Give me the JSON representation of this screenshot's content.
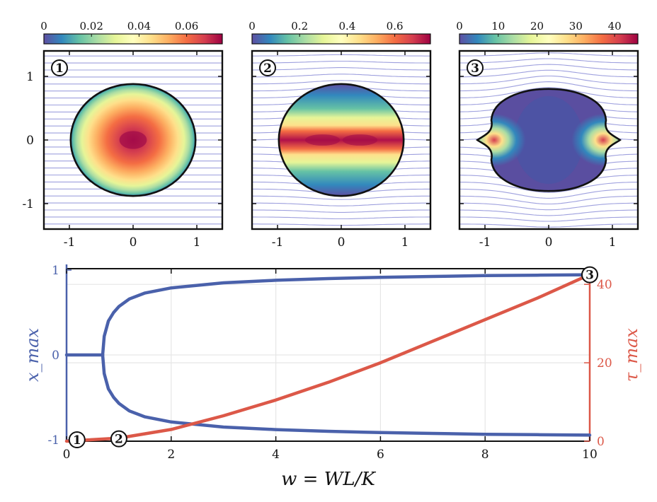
{
  "chart_data": [
    {
      "type": "heatmap",
      "panel_label": "1",
      "colorbar": {
        "min": 0,
        "max": 0.075,
        "ticks": [
          0,
          0.02,
          0.04,
          0.06
        ]
      },
      "xticks": [
        -1,
        0,
        1
      ],
      "yticks": [
        1,
        0,
        -1
      ],
      "xlim": [
        -1.4,
        1.4
      ],
      "ylim": [
        -1.4,
        1.4
      ],
      "shape": {
        "type": "ellipse",
        "rx": 0.98,
        "ry": 0.88,
        "spikes": 0
      },
      "field": "central-peak",
      "streamline_bend": 0.0
    },
    {
      "type": "heatmap",
      "panel_label": "2",
      "colorbar": {
        "min": 0,
        "max": 0.75,
        "ticks": [
          0,
          0.2,
          0.4,
          0.6
        ]
      },
      "xticks": [
        -1,
        0,
        1
      ],
      "yticks": [],
      "xlim": [
        -1.4,
        1.4
      ],
      "ylim": [
        -1.4,
        1.4
      ],
      "shape": {
        "type": "ellipse",
        "rx": 0.98,
        "ry": 0.88,
        "spikes": 0
      },
      "field": "horizontal-band",
      "streamline_bend": 0.12
    },
    {
      "type": "heatmap",
      "panel_label": "3",
      "colorbar": {
        "min": 0,
        "max": 46,
        "ticks": [
          0,
          10,
          20,
          30,
          40
        ]
      },
      "xticks": [
        -1,
        0,
        1
      ],
      "yticks": [],
      "xlim": [
        -1.4,
        1.4
      ],
      "ylim": [
        -1.4,
        1.4
      ],
      "shape": {
        "type": "cusped-circle",
        "rx": 0.9,
        "ry": 0.92,
        "cusp_x": 1.12
      },
      "field": "edge-peaks",
      "streamline_bend": 0.28
    },
    {
      "type": "line",
      "xlabel": "w = WL/K",
      "ylabel_left": "x_max",
      "ylabel_right": "τ_max",
      "xlim": [
        0,
        10
      ],
      "ylim_left": [
        -1,
        1
      ],
      "ylim_right": [
        0,
        44
      ],
      "xticks": [
        0,
        2,
        4,
        6,
        8,
        10
      ],
      "yticks_left": [
        -1,
        0,
        1
      ],
      "yticks_right": [
        0,
        20,
        40
      ],
      "colors": {
        "left": "#4a61ab",
        "right": "#dc5848"
      },
      "bifurcation_w": 0.69,
      "series": [
        {
          "name": "x_max (zero branch)",
          "axis": "left",
          "x": [
            0,
            0.69
          ],
          "y": [
            0,
            0
          ]
        },
        {
          "name": "x_max (upper branch)",
          "axis": "left",
          "x": [
            0.69,
            0.72,
            0.8,
            0.9,
            1.0,
            1.2,
            1.5,
            2,
            3,
            4,
            5,
            6,
            7,
            8,
            9,
            10
          ],
          "y": [
            0,
            0.22,
            0.4,
            0.5,
            0.57,
            0.66,
            0.73,
            0.79,
            0.85,
            0.88,
            0.9,
            0.915,
            0.925,
            0.935,
            0.94,
            0.945
          ]
        },
        {
          "name": "x_max (lower branch)",
          "axis": "left",
          "x": [
            0.69,
            0.72,
            0.8,
            0.9,
            1.0,
            1.2,
            1.5,
            2,
            3,
            4,
            5,
            6,
            7,
            8,
            9,
            10
          ],
          "y": [
            0,
            -0.22,
            -0.4,
            -0.5,
            -0.57,
            -0.66,
            -0.73,
            -0.79,
            -0.85,
            -0.88,
            -0.9,
            -0.915,
            -0.925,
            -0.935,
            -0.94,
            -0.945
          ]
        },
        {
          "name": "τ_max",
          "axis": "right",
          "x": [
            0,
            1,
            2,
            3,
            4,
            5,
            6,
            7,
            8,
            9,
            10
          ],
          "y": [
            0,
            0.8,
            3,
            6.5,
            10.5,
            15,
            20,
            25.5,
            31,
            36.5,
            42.5
          ]
        }
      ],
      "markers": [
        {
          "label": "1",
          "x": 0.2,
          "y": -1,
          "axis": "left"
        },
        {
          "label": "2",
          "x": 1.0,
          "y": 0.6,
          "axis": "right"
        },
        {
          "label": "3",
          "x": 10,
          "y": 0.945,
          "axis": "left"
        }
      ]
    }
  ]
}
